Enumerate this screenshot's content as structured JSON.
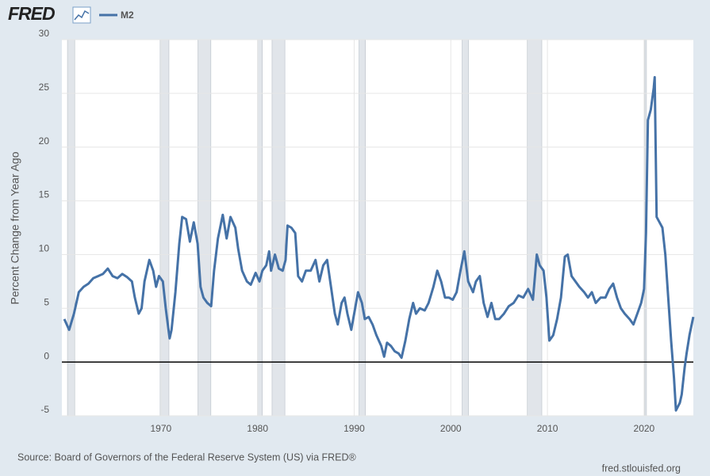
{
  "chart_data": {
    "type": "line",
    "logo": "FRED",
    "y_axis_label": "Percent Change from Year Ago",
    "source": "Source: Board of Governors of the Federal Reserve System (US) via FRED®",
    "watermark": "fred.stlouisfed.org",
    "xlim": [
      1959.75,
      2025.1
    ],
    "ylim": [
      -5,
      30
    ],
    "xticks": [
      1970,
      1980,
      1990,
      2000,
      2010,
      2020
    ],
    "yticks": [
      -5,
      0,
      5,
      10,
      15,
      20,
      25,
      30
    ],
    "grid": true,
    "reference_line": 0,
    "recession_color": "#e1e5ea",
    "recessions": [
      [
        1960.33,
        1961.08
      ],
      [
        1969.92,
        1970.83
      ],
      [
        1973.83,
        1975.17
      ],
      [
        1980.0,
        1980.5
      ],
      [
        1981.5,
        1982.83
      ],
      [
        1990.5,
        1991.17
      ],
      [
        2001.17,
        2001.83
      ],
      [
        2007.92,
        2009.42
      ],
      [
        2020.08,
        2020.25
      ]
    ],
    "x": [
      1960.0,
      1960.5,
      1961.0,
      1961.5,
      1962.0,
      1962.5,
      1963.0,
      1963.5,
      1964.0,
      1964.5,
      1965.0,
      1965.5,
      1966.0,
      1966.5,
      1967.0,
      1967.3,
      1967.7,
      1968.0,
      1968.3,
      1968.8,
      1969.2,
      1969.5,
      1969.8,
      1970.2,
      1970.5,
      1970.9,
      1971.1,
      1971.5,
      1971.9,
      1972.2,
      1972.6,
      1973.0,
      1973.4,
      1973.8,
      1974.1,
      1974.4,
      1974.8,
      1975.2,
      1975.5,
      1975.9,
      1976.4,
      1976.8,
      1977.2,
      1977.7,
      1978.0,
      1978.4,
      1978.9,
      1979.3,
      1979.8,
      1980.2,
      1980.5,
      1980.9,
      1981.2,
      1981.4,
      1981.8,
      1982.2,
      1982.6,
      1982.9,
      1983.1,
      1983.5,
      1983.9,
      1984.2,
      1984.6,
      1985.0,
      1985.5,
      1986.0,
      1986.4,
      1986.8,
      1987.2,
      1987.6,
      1988.0,
      1988.3,
      1988.7,
      1989.0,
      1989.3,
      1989.7,
      1990.0,
      1990.4,
      1990.8,
      1991.1,
      1991.5,
      1991.9,
      1992.3,
      1992.8,
      1993.1,
      1993.4,
      1993.8,
      1994.2,
      1994.6,
      1994.9,
      1995.3,
      1995.7,
      1996.1,
      1996.4,
      1996.8,
      1997.3,
      1997.7,
      1998.2,
      1998.6,
      1999.0,
      1999.4,
      1999.8,
      2000.2,
      2000.6,
      2001.0,
      2001.4,
      2001.8,
      2002.3,
      2002.6,
      2003.0,
      2003.4,
      2003.8,
      2004.2,
      2004.6,
      2005.0,
      2005.5,
      2006.0,
      2006.5,
      2007.0,
      2007.5,
      2008.0,
      2008.5,
      2008.9,
      2009.2,
      2009.6,
      2009.9,
      2010.2,
      2010.6,
      2011.0,
      2011.4,
      2011.8,
      2012.1,
      2012.5,
      2012.9,
      2013.3,
      2013.8,
      2014.2,
      2014.6,
      2015.0,
      2015.5,
      2016.0,
      2016.4,
      2016.8,
      2017.2,
      2017.6,
      2018.0,
      2018.5,
      2018.9,
      2019.3,
      2019.7,
      2020.0,
      2020.2,
      2020.4,
      2020.7,
      2021.0,
      2021.1,
      2021.3,
      2021.6,
      2021.9,
      2022.2,
      2022.5,
      2022.8,
      2023.1,
      2023.3,
      2023.7,
      2023.9,
      2024.2,
      2024.4,
      2024.7,
      2025.0,
      2025.1
    ],
    "series": [
      {
        "name": "M2",
        "color": "#4572a7",
        "values": [
          4.0,
          3.0,
          4.5,
          6.5,
          7.0,
          7.3,
          7.8,
          8.0,
          8.2,
          8.7,
          8.0,
          7.8,
          8.2,
          7.9,
          7.5,
          6.0,
          4.5,
          5.0,
          7.5,
          9.5,
          8.5,
          7.0,
          8.0,
          7.5,
          5.0,
          2.2,
          3.0,
          6.5,
          11.0,
          13.5,
          13.3,
          11.2,
          13.0,
          11.0,
          7.0,
          6.0,
          5.5,
          5.2,
          8.5,
          11.5,
          13.7,
          11.5,
          13.5,
          12.5,
          10.5,
          8.5,
          7.5,
          7.2,
          8.3,
          7.5,
          8.5,
          9.0,
          10.3,
          8.5,
          10.0,
          8.7,
          8.5,
          9.5,
          12.7,
          12.5,
          12.0,
          8.0,
          7.5,
          8.5,
          8.5,
          9.5,
          7.5,
          9.0,
          9.5,
          7.0,
          4.5,
          3.5,
          5.5,
          6.0,
          4.5,
          3.0,
          4.5,
          6.5,
          5.5,
          4.0,
          4.2,
          3.5,
          2.5,
          1.5,
          0.5,
          1.8,
          1.5,
          1.0,
          0.8,
          0.4,
          2.0,
          4.0,
          5.5,
          4.5,
          5.0,
          4.8,
          5.5,
          7.0,
          8.5,
          7.5,
          6.0,
          6.0,
          5.8,
          6.5,
          8.5,
          10.3,
          7.5,
          6.5,
          7.5,
          8.0,
          5.5,
          4.2,
          5.5,
          4.0,
          4.0,
          4.5,
          5.2,
          5.5,
          6.2,
          6.0,
          6.8,
          5.8,
          10.0,
          9.0,
          8.5,
          6.0,
          2.0,
          2.5,
          4.0,
          6.0,
          9.8,
          10.0,
          8.0,
          7.5,
          7.0,
          6.5,
          6.0,
          6.5,
          5.5,
          6.0,
          6.0,
          6.8,
          7.3,
          6.0,
          5.0,
          4.5,
          4.0,
          3.5,
          4.5,
          5.5,
          6.8,
          12.0,
          22.5,
          23.5,
          25.5,
          26.5,
          13.5,
          13.0,
          12.5,
          10.0,
          6.0,
          2.0,
          -1.5,
          -4.5,
          -3.8,
          -3.0,
          -0.5,
          0.8,
          2.5,
          3.8,
          4.2
        ]
      }
    ]
  }
}
